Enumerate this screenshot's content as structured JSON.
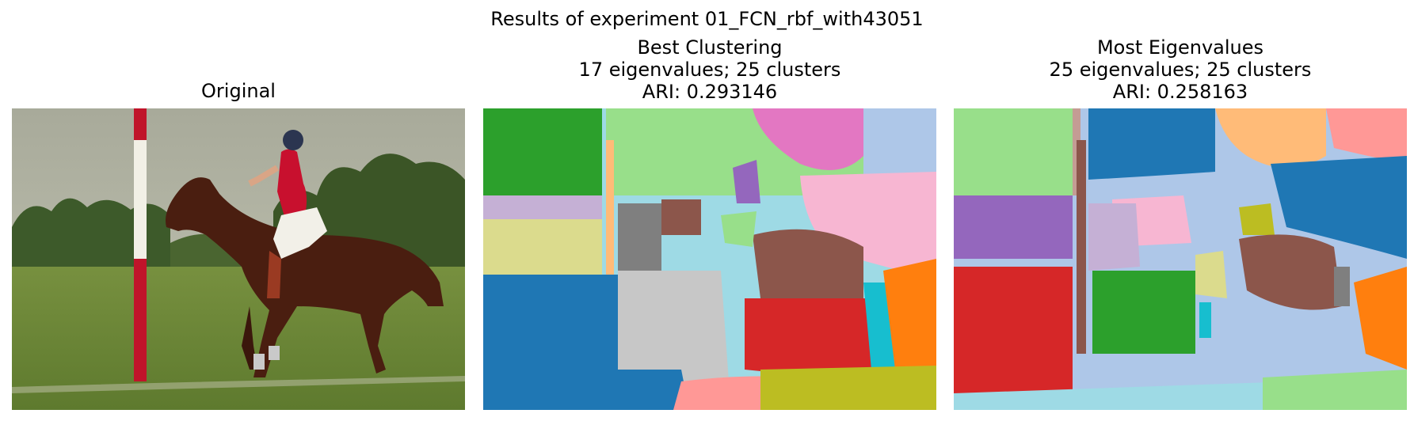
{
  "figure": {
    "suptitle": "Results of experiment 01_FCN_rbf_with43051",
    "panels": [
      {
        "title_lines": [
          "Original"
        ]
      },
      {
        "title_lines": [
          "Best Clustering",
          "17 eigenvalues; 25 clusters",
          "ARI: 0.293146"
        ]
      },
      {
        "title_lines": [
          "Most Eigenvalues",
          "25 eigenvalues; 25 clusters",
          "ARI: 0.258163"
        ]
      }
    ]
  }
}
